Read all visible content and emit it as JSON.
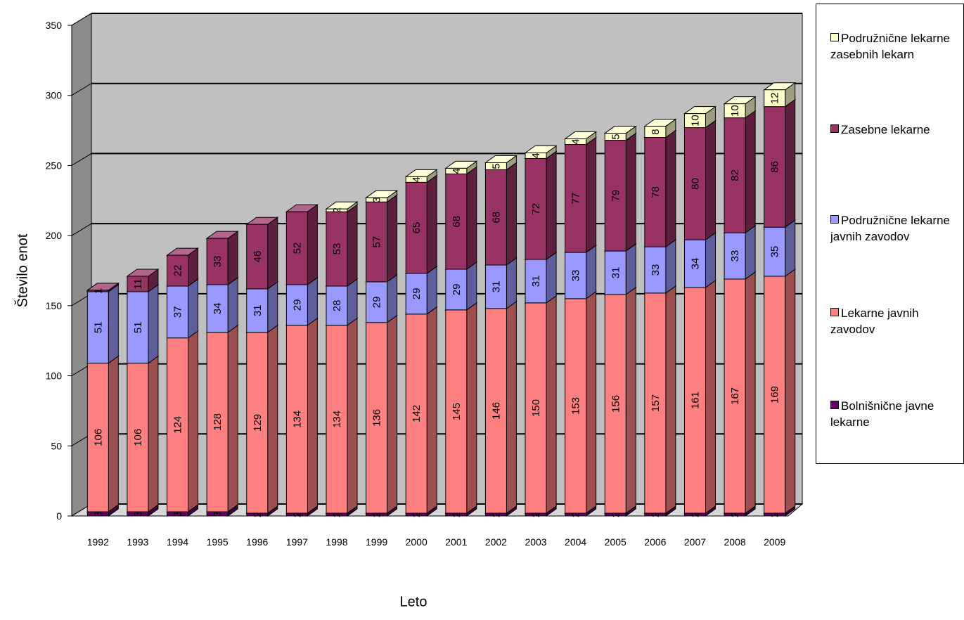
{
  "chart_data": {
    "type": "bar",
    "stacked": true,
    "three_d": true,
    "xlabel": "Leto",
    "ylabel": "Število enot",
    "ylim": [
      0,
      350
    ],
    "yticks": [
      0,
      50,
      100,
      150,
      200,
      250,
      300,
      350
    ],
    "grid": true,
    "legend_position": "right",
    "categories": [
      "1992",
      "1993",
      "1994",
      "1995",
      "1996",
      "1997",
      "1998",
      "1999",
      "2000",
      "2001",
      "2002",
      "2003",
      "2004",
      "2005",
      "2006",
      "2007",
      "2008",
      "2009"
    ],
    "series": [
      {
        "name": "Bolnišnične javne lekarne",
        "color": "#660066",
        "values": [
          3,
          3,
          3,
          3,
          2,
          2,
          2,
          2,
          2,
          2,
          2,
          2,
          2,
          2,
          2,
          2,
          2,
          2
        ]
      },
      {
        "name": "Lekarne javnih zavodov",
        "color": "#ff8080",
        "values": [
          106,
          106,
          124,
          128,
          129,
          134,
          134,
          136,
          142,
          145,
          146,
          150,
          153,
          156,
          157,
          161,
          167,
          169
        ]
      },
      {
        "name": "Podružnične lekarne javnih zavodov",
        "color": "#9999ff",
        "values": [
          51,
          51,
          37,
          34,
          31,
          29,
          28,
          29,
          29,
          29,
          31,
          31,
          33,
          31,
          33,
          34,
          33,
          35
        ]
      },
      {
        "name": "Zasebne lekarne",
        "color": "#993366",
        "values": [
          1,
          11,
          22,
          33,
          46,
          52,
          53,
          57,
          65,
          68,
          68,
          72,
          77,
          79,
          78,
          80,
          82,
          86
        ]
      },
      {
        "name": "Podružnične lekarne zasebnih lekarn",
        "color": "#ffffcc",
        "values": [
          0,
          0,
          0,
          0,
          0,
          0,
          2,
          3,
          4,
          4,
          5,
          4,
          4,
          5,
          8,
          10,
          10,
          12
        ]
      }
    ],
    "legend_order": [
      "Podružnične lekarne zasebnih lekarn",
      "Zasebne lekarne",
      "Podružnične lekarne javnih zavodov",
      "Lekarne javnih zavodov",
      "Bolnišnične javne lekarne"
    ]
  }
}
